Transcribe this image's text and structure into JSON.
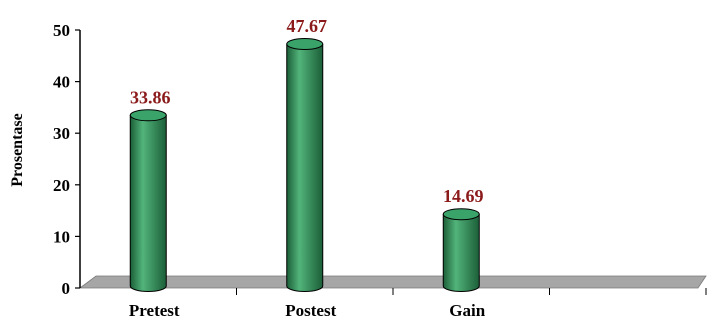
{
  "chart_data": {
    "type": "bar",
    "style": "3d-cylinder",
    "title": "",
    "xlabel": "",
    "ylabel": "Prosentase",
    "categories": [
      "Pretest",
      "Postest",
      "Gain"
    ],
    "values": [
      33.86,
      47.67,
      14.69
    ],
    "data_labels": [
      "33.86",
      "47.67",
      "14.69"
    ],
    "ylim": [
      0,
      50
    ],
    "yticks": [
      0,
      10,
      20,
      30,
      40,
      50
    ],
    "ytick_labels": [
      "0",
      "10",
      "20",
      "30",
      "40",
      "50"
    ],
    "extra_empty_slots": 1,
    "grid": false,
    "legend": "none",
    "colors": {
      "bar_fill": "#2e8b57",
      "bar_dark": "#1b5e38",
      "bar_light": "#52b47a",
      "bar_top": "#3aa36a",
      "data_label": "#8b1a1a",
      "floor": "#a6a6a6",
      "axis": "#000000"
    }
  }
}
